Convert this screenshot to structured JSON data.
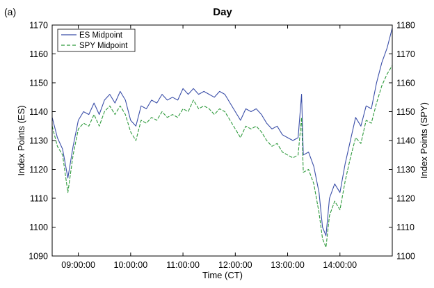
{
  "chart_data": {
    "type": "line",
    "panel_label": "(a)",
    "title": "Day",
    "xlabel": "Time (CT)",
    "ylabel_left": "Index Points (ES)",
    "ylabel_right": "Index Points (SPY)",
    "x_range": [
      "08:30:00",
      "15:00:00"
    ],
    "x_ticks": [
      "09:00:00",
      "10:00:00",
      "11:00:00",
      "12:00:00",
      "13:00:00",
      "14:00:00"
    ],
    "y_left": {
      "range": [
        1090,
        1170
      ],
      "ticks": [
        1090,
        1100,
        1110,
        1120,
        1130,
        1140,
        1150,
        1160,
        1170
      ]
    },
    "y_right": {
      "range": [
        1100,
        1180
      ],
      "ticks": [
        1100,
        1110,
        1120,
        1130,
        1140,
        1150,
        1160,
        1170,
        1180
      ]
    },
    "legend": {
      "position": "top-left"
    },
    "grid": false,
    "series": [
      {
        "name": "ES Midpoint",
        "axis": "left",
        "color": "#3a4ea8",
        "style": "solid",
        "points": [
          [
            "08:30:00",
            1138
          ],
          [
            "08:36:00",
            1131
          ],
          [
            "08:42:00",
            1127
          ],
          [
            "08:48:00",
            1117
          ],
          [
            "08:54:00",
            1128
          ],
          [
            "09:00:00",
            1137
          ],
          [
            "09:06:00",
            1140
          ],
          [
            "09:12:00",
            1139
          ],
          [
            "09:18:00",
            1143
          ],
          [
            "09:24:00",
            1139
          ],
          [
            "09:30:00",
            1144
          ],
          [
            "09:36:00",
            1146
          ],
          [
            "09:42:00",
            1143
          ],
          [
            "09:48:00",
            1147
          ],
          [
            "09:54:00",
            1144
          ],
          [
            "10:00:00",
            1137
          ],
          [
            "10:06:00",
            1135
          ],
          [
            "10:12:00",
            1142
          ],
          [
            "10:18:00",
            1141
          ],
          [
            "10:24:00",
            1144
          ],
          [
            "10:30:00",
            1143
          ],
          [
            "10:36:00",
            1146
          ],
          [
            "10:42:00",
            1144
          ],
          [
            "10:48:00",
            1145
          ],
          [
            "10:54:00",
            1144
          ],
          [
            "11:00:00",
            1148
          ],
          [
            "11:06:00",
            1146
          ],
          [
            "11:12:00",
            1148
          ],
          [
            "11:18:00",
            1146
          ],
          [
            "11:24:00",
            1147
          ],
          [
            "11:30:00",
            1146
          ],
          [
            "11:36:00",
            1145
          ],
          [
            "11:42:00",
            1147
          ],
          [
            "11:48:00",
            1146
          ],
          [
            "11:54:00",
            1143
          ],
          [
            "12:00:00",
            1140
          ],
          [
            "12:06:00",
            1137
          ],
          [
            "12:12:00",
            1141
          ],
          [
            "12:18:00",
            1140
          ],
          [
            "12:24:00",
            1141
          ],
          [
            "12:30:00",
            1139
          ],
          [
            "12:36:00",
            1136
          ],
          [
            "12:42:00",
            1134
          ],
          [
            "12:48:00",
            1135
          ],
          [
            "12:54:00",
            1132
          ],
          [
            "13:00:00",
            1131
          ],
          [
            "13:06:00",
            1130
          ],
          [
            "13:12:00",
            1131
          ],
          [
            "13:16:00",
            1146
          ],
          [
            "13:18:00",
            1125
          ],
          [
            "13:24:00",
            1126
          ],
          [
            "13:30:00",
            1121
          ],
          [
            "13:36:00",
            1112
          ],
          [
            "13:40:00",
            1100
          ],
          [
            "13:44:00",
            1097
          ],
          [
            "13:48:00",
            1110
          ],
          [
            "13:54:00",
            1115
          ],
          [
            "14:00:00",
            1112
          ],
          [
            "14:06:00",
            1122
          ],
          [
            "14:12:00",
            1130
          ],
          [
            "14:18:00",
            1138
          ],
          [
            "14:24:00",
            1135
          ],
          [
            "14:30:00",
            1142
          ],
          [
            "14:36:00",
            1141
          ],
          [
            "14:42:00",
            1150
          ],
          [
            "14:48:00",
            1157
          ],
          [
            "14:54:00",
            1162
          ],
          [
            "15:00:00",
            1169
          ]
        ]
      },
      {
        "name": "SPY Midpoint",
        "axis": "right",
        "color": "#2e9a3c",
        "style": "dashed",
        "points": [
          [
            "08:30:00",
            1145
          ],
          [
            "08:36:00",
            1138
          ],
          [
            "08:42:00",
            1135
          ],
          [
            "08:48:00",
            1122
          ],
          [
            "08:54:00",
            1135
          ],
          [
            "09:00:00",
            1144
          ],
          [
            "09:06:00",
            1146
          ],
          [
            "09:12:00",
            1145
          ],
          [
            "09:18:00",
            1149
          ],
          [
            "09:24:00",
            1145
          ],
          [
            "09:30:00",
            1150
          ],
          [
            "09:36:00",
            1152
          ],
          [
            "09:42:00",
            1149
          ],
          [
            "09:48:00",
            1152
          ],
          [
            "09:54:00",
            1149
          ],
          [
            "10:00:00",
            1143
          ],
          [
            "10:06:00",
            1140
          ],
          [
            "10:12:00",
            1147
          ],
          [
            "10:18:00",
            1146
          ],
          [
            "10:24:00",
            1148
          ],
          [
            "10:30:00",
            1147
          ],
          [
            "10:36:00",
            1150
          ],
          [
            "10:42:00",
            1148
          ],
          [
            "10:48:00",
            1149
          ],
          [
            "10:54:00",
            1148
          ],
          [
            "11:00:00",
            1151
          ],
          [
            "11:06:00",
            1150
          ],
          [
            "11:12:00",
            1154
          ],
          [
            "11:18:00",
            1151
          ],
          [
            "11:24:00",
            1152
          ],
          [
            "11:30:00",
            1151
          ],
          [
            "11:36:00",
            1149
          ],
          [
            "11:42:00",
            1151
          ],
          [
            "11:48:00",
            1150
          ],
          [
            "11:54:00",
            1147
          ],
          [
            "12:00:00",
            1144
          ],
          [
            "12:06:00",
            1141
          ],
          [
            "12:12:00",
            1145
          ],
          [
            "12:18:00",
            1144
          ],
          [
            "12:24:00",
            1145
          ],
          [
            "12:30:00",
            1143
          ],
          [
            "12:36:00",
            1140
          ],
          [
            "12:42:00",
            1138
          ],
          [
            "12:48:00",
            1139
          ],
          [
            "12:54:00",
            1136
          ],
          [
            "13:00:00",
            1135
          ],
          [
            "13:06:00",
            1134
          ],
          [
            "13:12:00",
            1135
          ],
          [
            "13:16:00",
            1148
          ],
          [
            "13:18:00",
            1129
          ],
          [
            "13:24:00",
            1130
          ],
          [
            "13:30:00",
            1125
          ],
          [
            "13:36:00",
            1115
          ],
          [
            "13:40:00",
            1106
          ],
          [
            "13:44:00",
            1103
          ],
          [
            "13:48:00",
            1114
          ],
          [
            "13:54:00",
            1119
          ],
          [
            "14:00:00",
            1116
          ],
          [
            "14:06:00",
            1126
          ],
          [
            "14:12:00",
            1134
          ],
          [
            "14:18:00",
            1141
          ],
          [
            "14:24:00",
            1139
          ],
          [
            "14:30:00",
            1147
          ],
          [
            "14:36:00",
            1146
          ],
          [
            "14:42:00",
            1153
          ],
          [
            "14:48:00",
            1159
          ],
          [
            "14:54:00",
            1163
          ],
          [
            "15:00:00",
            1166
          ]
        ]
      }
    ]
  }
}
